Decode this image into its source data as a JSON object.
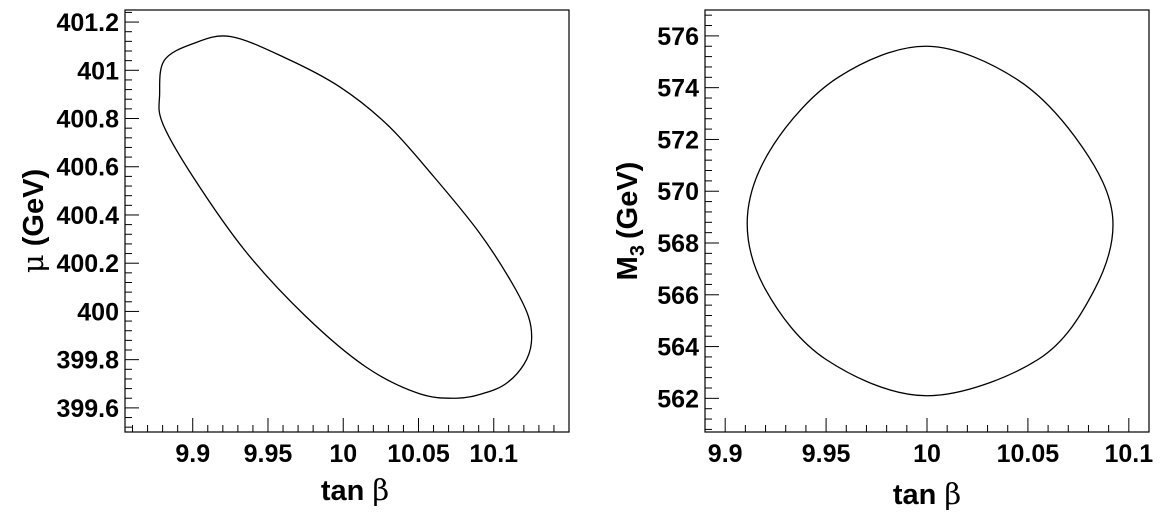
{
  "chart_data": [
    {
      "type": "line",
      "subtype": "contour",
      "title": "",
      "xlabel": "tan",
      "xlabel_symbol": "β",
      "ylabel": "(GeV)",
      "ylabel_symbol": "μ",
      "xlim": [
        9.855,
        10.15
      ],
      "ylim": [
        399.5,
        401.25
      ],
      "xticks": [
        9.9,
        9.95,
        10,
        10.05,
        10.1
      ],
      "xtick_labels": [
        "9.9",
        "9.95",
        "10",
        "10.05",
        "10.1"
      ],
      "yticks": [
        399.6,
        399.8,
        400,
        400.2,
        400.4,
        400.6,
        400.8,
        401,
        401.2
      ],
      "ytick_labels": [
        "399.6",
        "399.8",
        "400",
        "400.2",
        "400.4",
        "400.6",
        "400.8",
        "401",
        "401.2"
      ],
      "grid": false,
      "series": [
        {
          "x": [
            9.925,
            9.962,
            9.998,
            10.03,
            10.06,
            10.09,
            10.111,
            10.123,
            10.125,
            10.12,
            10.108,
            10.093,
            10.075,
            10.05,
            10.015,
            9.975,
            9.935,
            9.9,
            9.88,
            9.878,
            9.881,
            9.9,
            9.925
          ],
          "y": [
            401.14,
            401.05,
            400.93,
            400.77,
            400.56,
            400.33,
            400.13,
            399.98,
            399.87,
            399.78,
            399.7,
            399.66,
            399.64,
            399.66,
            399.77,
            399.98,
            400.25,
            400.56,
            400.78,
            400.9,
            401.04,
            401.11,
            401.14
          ]
        }
      ]
    },
    {
      "type": "line",
      "subtype": "contour",
      "title": "",
      "xlabel": "tan",
      "xlabel_symbol": "β",
      "ylabel": "M",
      "ylabel_sub": "3",
      "ylabel_unit": "(GeV)",
      "xlim": [
        9.89,
        10.11
      ],
      "ylim": [
        560.7,
        577.0
      ],
      "xticks": [
        9.9,
        9.95,
        10,
        10.05,
        10.1
      ],
      "xtick_labels": [
        "9.9",
        "9.95",
        "10",
        "10.05",
        "10.1"
      ],
      "yticks": [
        562,
        564,
        566,
        568,
        570,
        572,
        574,
        576
      ],
      "ytick_labels": [
        "562",
        "564",
        "566",
        "568",
        "570",
        "572",
        "574",
        "576"
      ],
      "grid": false,
      "series": [
        {
          "x": [
            10.0,
            10.045,
            10.077,
            10.092,
            10.083,
            10.055,
            10.0,
            9.95,
            9.92,
            9.911,
            9.924,
            9.956,
            10.0
          ],
          "y": [
            575.6,
            574.3,
            571.7,
            569.0,
            566.2,
            563.5,
            562.1,
            563.5,
            566.2,
            569.0,
            571.8,
            574.4,
            575.6
          ]
        }
      ]
    }
  ]
}
